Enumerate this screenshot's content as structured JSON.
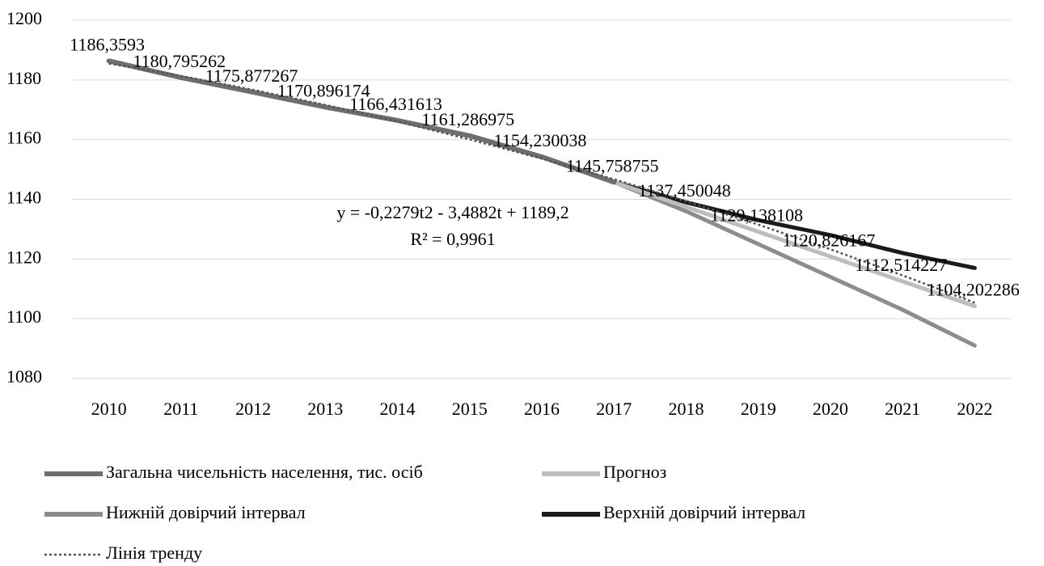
{
  "chart_data": {
    "type": "line",
    "categories": [
      "2010",
      "2011",
      "2012",
      "2013",
      "2014",
      "2015",
      "2016",
      "2017",
      "2018",
      "2019",
      "2020",
      "2021",
      "2022"
    ],
    "ylim": [
      1080,
      1200
    ],
    "yticks": [
      1080,
      1100,
      1120,
      1140,
      1160,
      1180,
      1200
    ],
    "grid": true,
    "legend": "bottom",
    "annotations": [
      "y = -0,2279t2 - 3,4882t + 1189,2",
      "R² = 0,9961"
    ],
    "series": [
      {
        "name": "Загальна чисельність населення, тис. осіб",
        "color": "#6e6e6e",
        "values": [
          1186.3593,
          1180.795262,
          1175.877267,
          1170.896174,
          1166.431613,
          1161.286975,
          1154.230038,
          1145.758755,
          null,
          null,
          null,
          null,
          null
        ],
        "value_labels": [
          "1186,3593",
          "1180,795262",
          "1175,877267",
          "1170,896174",
          "1166,431613",
          "1161,286975",
          "1154,230038",
          "1145,758755",
          null,
          null,
          null,
          null,
          null
        ]
      },
      {
        "name": "Прогноз",
        "color": "#bdbdbd",
        "values": [
          null,
          null,
          null,
          null,
          null,
          null,
          null,
          1145.758755,
          1137.450048,
          1129.138108,
          1120.826167,
          1112.514227,
          1104.202286
        ],
        "value_labels": [
          null,
          null,
          null,
          null,
          null,
          null,
          null,
          null,
          "1137,450048",
          "1129,138108",
          "1120,826167",
          "1112,514227",
          "1104,202286"
        ]
      },
      {
        "name": "Нижній довірчий інтервал",
        "color": "#8c8c8c",
        "values": [
          null,
          null,
          null,
          null,
          null,
          null,
          null,
          1145.758755,
          1136,
          1125,
          1114,
          1103,
          1091
        ]
      },
      {
        "name": "Верхній довірчий інтервал",
        "color": "#1a1a1a",
        "values": [
          null,
          null,
          null,
          null,
          null,
          null,
          null,
          1145.758755,
          1139,
          1133,
          1128,
          1122,
          1117
        ]
      },
      {
        "name": "Лінія тренду",
        "color": "#555555",
        "style": "dotted",
        "values": [
          1185.48,
          1181.31,
          1176.68,
          1171.6,
          1166.06,
          1160.07,
          1153.62,
          1146.71,
          1139.35,
          1131.53,
          1123.25,
          1114.52,
          1105.34
        ]
      }
    ]
  }
}
